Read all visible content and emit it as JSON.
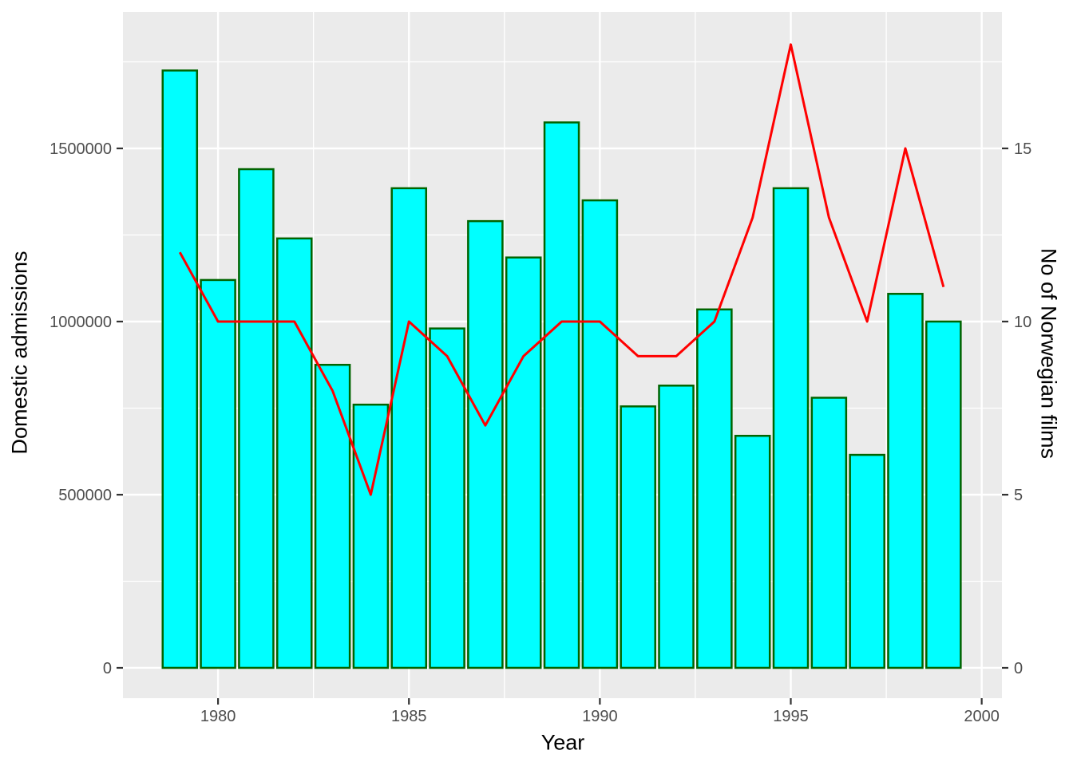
{
  "chart_data": {
    "type": "bar+line",
    "x": [
      1979,
      1980,
      1981,
      1982,
      1983,
      1984,
      1985,
      1986,
      1987,
      1988,
      1989,
      1990,
      1991,
      1992,
      1993,
      1994,
      1995,
      1996,
      1997,
      1998,
      1999
    ],
    "series": [
      {
        "name": "Domestic admissions",
        "type": "bar",
        "axis": "left",
        "values": [
          1725000,
          1120000,
          1440000,
          1240000,
          875000,
          760000,
          1385000,
          980000,
          1290000,
          1185000,
          1575000,
          1350000,
          755000,
          815000,
          1035000,
          670000,
          1385000,
          780000,
          615000,
          1080000,
          1000000
        ]
      },
      {
        "name": "No of Norwegian films",
        "type": "line",
        "axis": "right",
        "values": [
          12,
          10,
          10,
          10,
          8,
          5,
          10,
          9,
          7,
          9,
          10,
          10,
          9,
          9,
          10,
          13,
          18,
          13,
          10,
          15,
          11
        ]
      }
    ],
    "x_axis": {
      "title": "Year",
      "tick_values": [
        1980,
        1985,
        1990,
        1995,
        2000
      ],
      "tick_labels": [
        "1980",
        "1985",
        "1990",
        "1995",
        "2000"
      ],
      "minor_ticks": [
        1982.5,
        1987.5,
        1992.5,
        1997.5
      ],
      "range": [
        1977.51,
        2000.53
      ]
    },
    "y_axis_left": {
      "title": "Domestic admissions",
      "tick_values": [
        0,
        500000,
        1000000,
        1500000
      ],
      "tick_labels": [
        "0",
        "500000",
        "1000000",
        "1500000"
      ],
      "minor_ticks": [
        250000,
        750000,
        1250000,
        1750000
      ],
      "range": [
        -87600,
        1894000
      ]
    },
    "y_axis_right": {
      "title": "No of Norwegian films",
      "tick_values": [
        0,
        5,
        10,
        15
      ],
      "tick_labels": [
        "0",
        "5",
        "10",
        "15"
      ],
      "scale_factor": 100000
    },
    "grid": true,
    "legend": "none",
    "bar_width_years": 0.9,
    "colors": {
      "bar_fill": "#00FFFF",
      "bar_border": "#006400",
      "line": "#FF0000",
      "panel_bg": "#EBEBEB",
      "grid_major": "#FFFFFF",
      "grid_minor": "#FFFFFF",
      "tick_mark": "#333333",
      "tick_label": "#4D4D4D",
      "axis_title": "#000000"
    }
  }
}
